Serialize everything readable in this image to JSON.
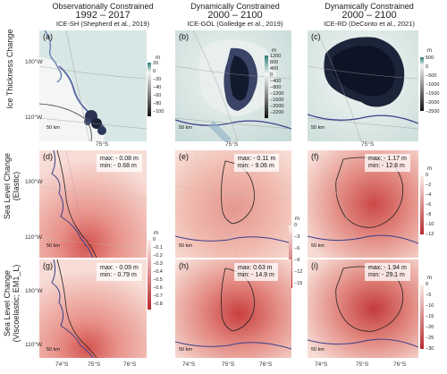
{
  "columns": [
    {
      "line1": "Observationally Constrained",
      "line2": "1992 – 2017",
      "ref": "ICE-SH (Shepherd et al., 2019)"
    },
    {
      "line1": "Dynamically Constrained",
      "line2": "2000 – 2100",
      "ref": "ICE-GOL (Golledge et al., 2019)"
    },
    {
      "line1": "Dynamically Constrained",
      "line2": "2000 – 2100",
      "ref": "ICE-RD (DeConto et al., 2021)"
    }
  ],
  "rows": [
    {
      "line1": "Ice Thickness Change",
      "line2": ""
    },
    {
      "line1": "Sea Level Change",
      "line2": "(Elastic)"
    },
    {
      "line1": "Sea Level Change",
      "line2": "(Viscoelastic; EM1_L)"
    }
  ],
  "panels": {
    "a": {
      "label": "(a)",
      "lon1": "100°W",
      "lon2": "110°W",
      "scale": "50 km",
      "lat": "75°S"
    },
    "b": {
      "label": "(b)",
      "scale": "50 km",
      "lat": "75°S"
    },
    "c": {
      "label": "(c)",
      "scale": "50 km",
      "lat": "75°S"
    },
    "d": {
      "label": "(d)",
      "lon1": "100°W",
      "lon2": "110°W",
      "scale": "50 km",
      "max": "max: - 0.08 m",
      "min": "min: - 0.68 m"
    },
    "e": {
      "label": "(e)",
      "scale": "50 km",
      "max": "max: - 0.11 m",
      "min": "min: - 9.06 m"
    },
    "f": {
      "label": "(f)",
      "scale": "50 km",
      "max": "max: - 1.17 m",
      "min": "min: - 12.8 m"
    },
    "g": {
      "label": "(g)",
      "lon1": "100°W",
      "lon2": "110°W",
      "scale": "50 km",
      "max": "max: - 0.09 m",
      "min": "min: - 0.79 m"
    },
    "h": {
      "label": "(h)",
      "scale": "50 km",
      "max": "max: 0.63 m",
      "min": "min: - 14.9 m"
    },
    "i": {
      "label": "(i)",
      "scale": "50 km",
      "max": "max: - 1.94 m",
      "min": "min: - 29.1 m"
    }
  },
  "xaxis": {
    "l1": "74°S",
    "l2": "75°S",
    "l3": "76°S"
  },
  "colorbars": {
    "a": {
      "unit": "m",
      "ticks": [
        "20",
        "0",
        "−20",
        "−40",
        "−60",
        "−80",
        "−100"
      ]
    },
    "b": {
      "unit": "m",
      "ticks": [
        "1200",
        "800",
        "400",
        "0",
        "−400",
        "−800",
        "−1200",
        "−1600",
        "−2000",
        "−2200"
      ]
    },
    "c": {
      "unit": "m",
      "ticks": [
        "500",
        "0",
        "−500",
        "−1000",
        "−1500",
        "−2000",
        "−2500"
      ]
    },
    "elastic_obs": {
      "unit": "m",
      "ticks": [
        "0",
        "−0.1",
        "−0.2",
        "−0.3",
        "−0.4",
        "−0.5",
        "−0.6",
        "−0.7",
        "−0.8"
      ]
    },
    "dyn1": {
      "unit": "m",
      "ticks": [
        "0",
        "−3",
        "−6",
        "−9",
        "−12",
        "−15"
      ]
    },
    "f": {
      "unit": "m",
      "ticks": [
        "0",
        "−2",
        "−4",
        "−6",
        "−8",
        "−10",
        "−12"
      ]
    },
    "i": {
      "unit": "m",
      "ticks": [
        "0",
        "−5",
        "−10",
        "−15",
        "−20",
        "−25",
        "−30"
      ]
    }
  },
  "colors": {
    "sea_light": "#d7e7e5",
    "ice_dark": "#1b2438",
    "red_dark": "#c23a3f",
    "red_light": "#f6dcd6",
    "coast": "#3b3f8a"
  }
}
